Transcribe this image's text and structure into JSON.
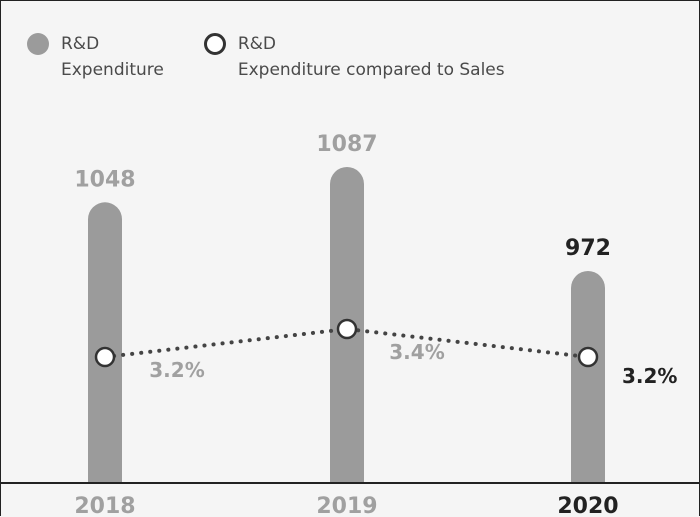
{
  "colors": {
    "bar": "#9b9b9b",
    "muted_text": "#a0a0a0",
    "highlight_text": "#222222",
    "line": "#444444",
    "axis": "#222222"
  },
  "legend": {
    "bars_label": "R&D\nExpenditure",
    "line_label": "R&D\nExpenditure compared to Sales"
  },
  "chart_data": {
    "type": "bar",
    "categories": [
      "2018",
      "2019",
      "2020"
    ],
    "series": [
      {
        "name": "R&D Expenditure",
        "values": [
          1048,
          1087,
          972
        ],
        "labels": [
          "1048",
          "1087",
          "972"
        ]
      },
      {
        "name": "R&D Expenditure compared to Sales",
        "type": "line",
        "values": [
          3.2,
          3.4,
          3.2
        ],
        "labels": [
          "3.2%",
          "3.4%",
          "3.2%"
        ]
      }
    ],
    "highlight_category": "2020",
    "line_style": "dotted",
    "grid": false,
    "legend_position": "top-left"
  }
}
